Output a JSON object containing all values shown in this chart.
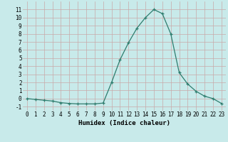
{
  "x": [
    0,
    1,
    2,
    3,
    4,
    5,
    6,
    7,
    8,
    9,
    10,
    11,
    12,
    13,
    14,
    15,
    16,
    17,
    18,
    19,
    20,
    21,
    22,
    23
  ],
  "y": [
    0,
    -0.1,
    -0.2,
    -0.3,
    -0.5,
    -0.6,
    -0.65,
    -0.65,
    -0.65,
    -0.55,
    2.0,
    4.8,
    6.9,
    8.7,
    10.0,
    11.0,
    10.5,
    8.0,
    3.2,
    1.8,
    0.9,
    0.3,
    0.0,
    -0.6
  ],
  "xlabel": "Humidex (Indice chaleur)",
  "xlim": [
    -0.5,
    23.5
  ],
  "ylim": [
    -1.5,
    12
  ],
  "yticks": [
    -1,
    0,
    1,
    2,
    3,
    4,
    5,
    6,
    7,
    8,
    9,
    10,
    11
  ],
  "xticks": [
    0,
    1,
    2,
    3,
    4,
    5,
    6,
    7,
    8,
    9,
    10,
    11,
    12,
    13,
    14,
    15,
    16,
    17,
    18,
    19,
    20,
    21,
    22,
    23
  ],
  "line_color": "#2e7d6e",
  "marker": "+",
  "bg_color": "#c8eaea",
  "grid_color": "#c8a8a8",
  "font_family": "monospace",
  "tick_fontsize": 5.5,
  "xlabel_fontsize": 6.5
}
